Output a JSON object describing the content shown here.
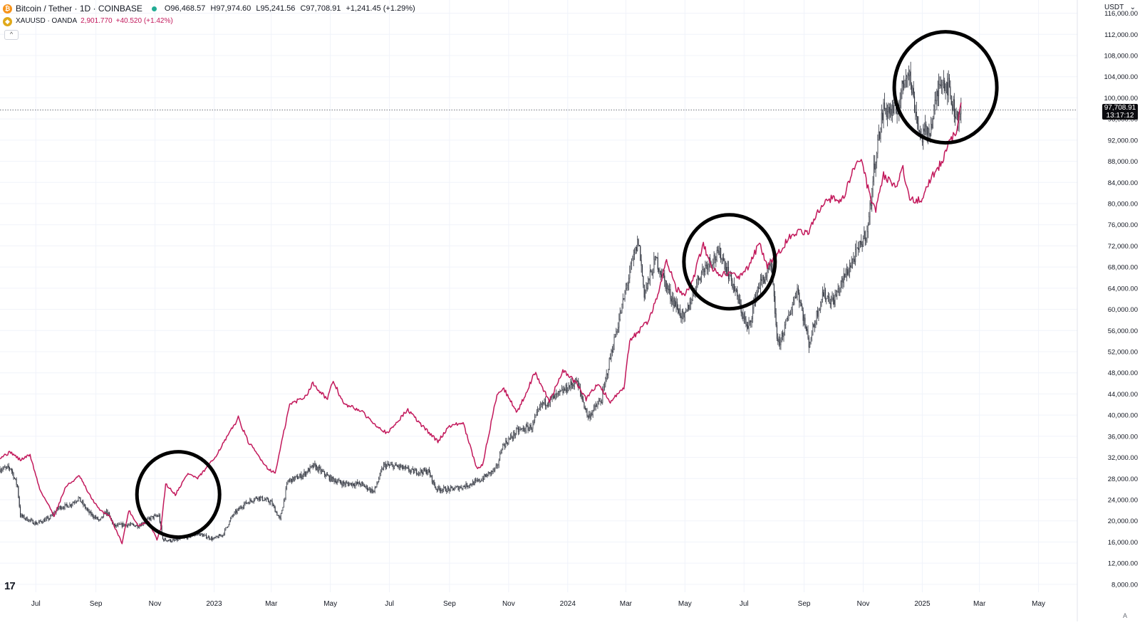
{
  "legend": {
    "main_title": "Bitcoin / Tether · 1D · COINBASE",
    "ohlc": {
      "open": "O96,468.57",
      "high": "H97,974.60",
      "low": "L95,241.56",
      "close": "C97,708.91",
      "change": "+1,241.45 (+1.29%)"
    },
    "overlay_title": "XAUUSD · OANDA",
    "overlay_value": "2,901.770",
    "overlay_change": "+40.520 (+1.42%)",
    "collapse_icon": "chevron-up-icon"
  },
  "currency_label": "USDT",
  "logo_text": "17",
  "auto_label": "A",
  "colors": {
    "btc_candle": "#2a2e39",
    "gold_line": "#c2185b",
    "grid": "#f0f3fa",
    "circle": "#000000"
  },
  "chart_data": {
    "type": "line",
    "title": "",
    "y_axis_ticks": [
      8000,
      12000,
      16000,
      20000,
      24000,
      28000,
      32000,
      36000,
      40000,
      44000,
      48000,
      52000,
      56000,
      60000,
      64000,
      68000,
      72000,
      76000,
      80000,
      84000,
      88000,
      92000,
      96000,
      100000,
      104000,
      108000,
      112000,
      116000
    ],
    "y_tick_labels": [
      "8,000.00",
      "12,000.00",
      "16,000.00",
      "20,000.00",
      "24,000.00",
      "28,000.00",
      "32,000.00",
      "36,000.00",
      "40,000.00",
      "44,000.00",
      "48,000.00",
      "52,000.00",
      "56,000.00",
      "60,000.00",
      "64,000.00",
      "68,000.00",
      "72,000.00",
      "76,000.00",
      "80,000.00",
      "84,000.00",
      "88,000.00",
      "92,000.00",
      "96,000.00",
      "100,000.00",
      "104,000.00",
      "108,000.00",
      "112,000.00",
      "116,000.00"
    ],
    "ylim": [
      6500,
      118500
    ],
    "x_ticks": [
      {
        "date": "2022-07-01",
        "label": "Jul"
      },
      {
        "date": "2022-09-01",
        "label": "Sep"
      },
      {
        "date": "2022-11-01",
        "label": "Nov"
      },
      {
        "date": "2023-01-01",
        "label": "2023"
      },
      {
        "date": "2023-03-01",
        "label": "Mar"
      },
      {
        "date": "2023-05-01",
        "label": "May"
      },
      {
        "date": "2023-07-01",
        "label": "Jul"
      },
      {
        "date": "2023-09-01",
        "label": "Sep"
      },
      {
        "date": "2023-11-01",
        "label": "Nov"
      },
      {
        "date": "2024-01-01",
        "label": "2024"
      },
      {
        "date": "2024-03-01",
        "label": "Mar"
      },
      {
        "date": "2024-05-01",
        "label": "May"
      },
      {
        "date": "2024-07-01",
        "label": "Jul"
      },
      {
        "date": "2024-09-01",
        "label": "Sep"
      },
      {
        "date": "2024-11-01",
        "label": "Nov"
      },
      {
        "date": "2025-01-01",
        "label": "2025"
      },
      {
        "date": "2025-03-01",
        "label": "Mar"
      },
      {
        "date": "2025-05-01",
        "label": "May"
      }
    ],
    "x_range": [
      "2022-05-25",
      "2025-06-10"
    ],
    "grid": true,
    "last_price": {
      "value": 97708.91,
      "label": "97,708.91",
      "countdown": "13:17:12"
    },
    "series": [
      {
        "name": "Bitcoin / Tether · 1D · COINBASE",
        "style": "candles",
        "points": [
          [
            "2022-05-25",
            29800
          ],
          [
            "2022-06-05",
            30000
          ],
          [
            "2022-06-12",
            26500
          ],
          [
            "2022-06-15",
            21000
          ],
          [
            "2022-06-20",
            20500
          ],
          [
            "2022-07-01",
            19500
          ],
          [
            "2022-07-15",
            20500
          ],
          [
            "2022-07-25",
            22500
          ],
          [
            "2022-08-05",
            23000
          ],
          [
            "2022-08-14",
            24300
          ],
          [
            "2022-08-25",
            21500
          ],
          [
            "2022-09-05",
            20000
          ],
          [
            "2022-09-12",
            21800
          ],
          [
            "2022-09-20",
            19000
          ],
          [
            "2022-10-01",
            19300
          ],
          [
            "2022-10-15",
            19100
          ],
          [
            "2022-10-28",
            20600
          ],
          [
            "2022-11-05",
            21000
          ],
          [
            "2022-11-09",
            16500
          ],
          [
            "2022-11-20",
            16200
          ],
          [
            "2022-12-05",
            17000
          ],
          [
            "2022-12-15",
            17600
          ],
          [
            "2022-12-31",
            16550
          ],
          [
            "2023-01-10",
            17400
          ],
          [
            "2023-01-20",
            21000
          ],
          [
            "2023-02-01",
            23200
          ],
          [
            "2023-02-15",
            24500
          ],
          [
            "2023-03-01",
            23500
          ],
          [
            "2023-03-10",
            20200
          ],
          [
            "2023-03-18",
            27500
          ],
          [
            "2023-04-01",
            28500
          ],
          [
            "2023-04-14",
            30400
          ],
          [
            "2023-05-01",
            28000
          ],
          [
            "2023-05-15",
            27000
          ],
          [
            "2023-06-01",
            27000
          ],
          [
            "2023-06-15",
            25500
          ],
          [
            "2023-06-25",
            30500
          ],
          [
            "2023-07-10",
            30300
          ],
          [
            "2023-07-25",
            29300
          ],
          [
            "2023-08-10",
            29400
          ],
          [
            "2023-08-18",
            26100
          ],
          [
            "2023-09-01",
            25900
          ],
          [
            "2023-09-15",
            26500
          ],
          [
            "2023-10-01",
            27500
          ],
          [
            "2023-10-20",
            30000
          ],
          [
            "2023-10-25",
            34000
          ],
          [
            "2023-11-10",
            37000
          ],
          [
            "2023-11-25",
            37800
          ],
          [
            "2023-12-05",
            42000
          ],
          [
            "2023-12-20",
            43500
          ],
          [
            "2024-01-10",
            46500
          ],
          [
            "2024-01-22",
            39600
          ],
          [
            "2024-02-05",
            43000
          ],
          [
            "2024-02-15",
            51800
          ],
          [
            "2024-02-28",
            62000
          ],
          [
            "2024-03-05",
            67000
          ],
          [
            "2024-03-14",
            73000
          ],
          [
            "2024-03-20",
            63000
          ],
          [
            "2024-04-01",
            69500
          ],
          [
            "2024-04-15",
            63000
          ],
          [
            "2024-04-30",
            58000
          ],
          [
            "2024-05-15",
            66000
          ],
          [
            "2024-05-25",
            69000
          ],
          [
            "2024-06-07",
            70500
          ],
          [
            "2024-06-20",
            64500
          ],
          [
            "2024-07-05",
            56000
          ],
          [
            "2024-07-15",
            64000
          ],
          [
            "2024-07-29",
            68000
          ],
          [
            "2024-08-05",
            53000
          ],
          [
            "2024-08-15",
            58000
          ],
          [
            "2024-08-25",
            64000
          ],
          [
            "2024-09-06",
            53500
          ],
          [
            "2024-09-20",
            63000
          ],
          [
            "2024-10-01",
            61500
          ],
          [
            "2024-10-15",
            67000
          ],
          [
            "2024-10-29",
            72000
          ],
          [
            "2024-11-06",
            75500
          ],
          [
            "2024-11-13",
            88000
          ],
          [
            "2024-11-22",
            98000
          ],
          [
            "2024-12-05",
            97000
          ],
          [
            "2024-12-17",
            106000
          ],
          [
            "2024-12-30",
            92500
          ],
          [
            "2025-01-10",
            94500
          ],
          [
            "2025-01-20",
            104000
          ],
          [
            "2025-01-28",
            102000
          ],
          [
            "2025-02-03",
            97500
          ],
          [
            "2025-02-07",
            96500
          ],
          [
            "2025-02-10",
            97700
          ]
        ]
      },
      {
        "name": "XAUUSD · OANDA",
        "style": "line",
        "points": [
          [
            "2022-05-25",
            32000
          ],
          [
            "2022-06-05",
            33000
          ],
          [
            "2022-06-15",
            31500
          ],
          [
            "2022-06-25",
            32500
          ],
          [
            "2022-07-05",
            26000
          ],
          [
            "2022-07-20",
            21000
          ],
          [
            "2022-08-01",
            26500
          ],
          [
            "2022-08-15",
            28500
          ],
          [
            "2022-08-25",
            25000
          ],
          [
            "2022-09-05",
            22000
          ],
          [
            "2022-09-15",
            21000
          ],
          [
            "2022-09-28",
            15800
          ],
          [
            "2022-10-05",
            22000
          ],
          [
            "2022-10-15",
            19000
          ],
          [
            "2022-10-25",
            20000
          ],
          [
            "2022-11-03",
            16500
          ],
          [
            "2022-11-07",
            18500
          ],
          [
            "2022-11-12",
            27000
          ],
          [
            "2022-11-22",
            25000
          ],
          [
            "2022-12-05",
            29000
          ],
          [
            "2022-12-15",
            28000
          ],
          [
            "2022-12-31",
            31500
          ],
          [
            "2023-01-15",
            36000
          ],
          [
            "2023-01-26",
            39500
          ],
          [
            "2023-02-05",
            35000
          ],
          [
            "2023-02-25",
            30000
          ],
          [
            "2023-03-05",
            29000
          ],
          [
            "2023-03-20",
            42000
          ],
          [
            "2023-04-05",
            43500
          ],
          [
            "2023-04-13",
            46000
          ],
          [
            "2023-04-28",
            43000
          ],
          [
            "2023-05-04",
            46500
          ],
          [
            "2023-05-15",
            42000
          ],
          [
            "2023-05-31",
            41000
          ],
          [
            "2023-06-15",
            38500
          ],
          [
            "2023-06-29",
            36500
          ],
          [
            "2023-07-10",
            39000
          ],
          [
            "2023-07-20",
            41000
          ],
          [
            "2023-08-01",
            38500
          ],
          [
            "2023-08-20",
            35000
          ],
          [
            "2023-09-01",
            38000
          ],
          [
            "2023-09-15",
            38500
          ],
          [
            "2023-09-29",
            30000
          ],
          [
            "2023-10-05",
            30500
          ],
          [
            "2023-10-20",
            44000
          ],
          [
            "2023-10-27",
            45000
          ],
          [
            "2023-11-10",
            40500
          ],
          [
            "2023-11-28",
            48000
          ],
          [
            "2023-12-04",
            46000
          ],
          [
            "2023-12-13",
            42500
          ],
          [
            "2023-12-27",
            48500
          ],
          [
            "2024-01-10",
            46000
          ],
          [
            "2024-01-20",
            43000
          ],
          [
            "2024-02-01",
            46000
          ],
          [
            "2024-02-14",
            42500
          ],
          [
            "2024-02-28",
            45000
          ],
          [
            "2024-03-05",
            54000
          ],
          [
            "2024-03-15",
            56000
          ],
          [
            "2024-03-25",
            58000
          ],
          [
            "2024-04-05",
            64000
          ],
          [
            "2024-04-12",
            69500
          ],
          [
            "2024-04-22",
            64000
          ],
          [
            "2024-05-01",
            62500
          ],
          [
            "2024-05-10",
            66000
          ],
          [
            "2024-05-20",
            72500
          ],
          [
            "2024-05-28",
            68000
          ],
          [
            "2024-06-07",
            66500
          ],
          [
            "2024-06-15",
            67000
          ],
          [
            "2024-06-25",
            66000
          ],
          [
            "2024-07-05",
            68000
          ],
          [
            "2024-07-17",
            72500
          ],
          [
            "2024-07-25",
            68000
          ],
          [
            "2024-08-05",
            70500
          ],
          [
            "2024-08-20",
            74500
          ],
          [
            "2024-09-05",
            74500
          ],
          [
            "2024-09-20",
            80000
          ],
          [
            "2024-09-26",
            81000
          ],
          [
            "2024-10-10",
            80500
          ],
          [
            "2024-10-22",
            86500
          ],
          [
            "2024-10-30",
            88500
          ],
          [
            "2024-11-07",
            82000
          ],
          [
            "2024-11-14",
            79000
          ],
          [
            "2024-11-22",
            85500
          ],
          [
            "2024-12-05",
            83000
          ],
          [
            "2024-12-12",
            86500
          ],
          [
            "2024-12-19",
            81000
          ],
          [
            "2024-12-31",
            80500
          ],
          [
            "2025-01-10",
            85000
          ],
          [
            "2025-01-22",
            88000
          ],
          [
            "2025-01-31",
            92500
          ],
          [
            "2025-02-05",
            93000
          ],
          [
            "2025-02-10",
            98500
          ]
        ]
      }
    ],
    "annotations": [
      {
        "type": "ellipse",
        "center_date": "2022-11-25",
        "center_value": 25000
      },
      {
        "type": "ellipse",
        "center_date": "2024-06-16",
        "center_value": 69000
      },
      {
        "type": "ellipse",
        "center_date": "2025-01-25",
        "center_value": 102000
      }
    ]
  }
}
